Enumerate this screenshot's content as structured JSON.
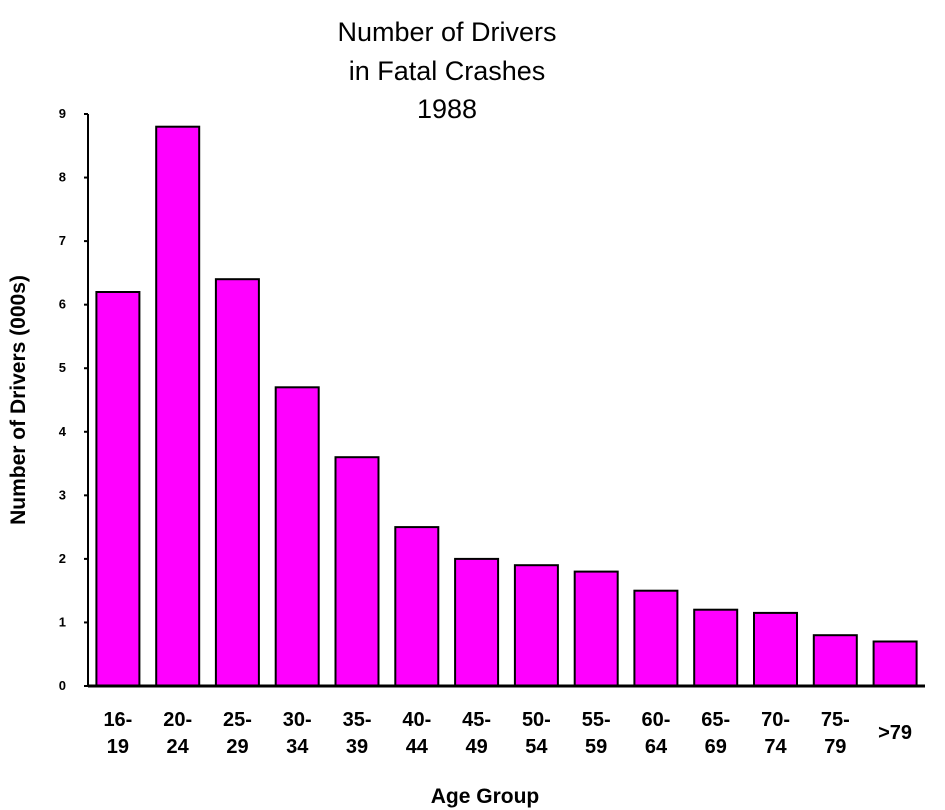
{
  "chart_data": {
    "type": "bar",
    "title_lines": [
      "Number of Drivers",
      "in Fatal Crashes",
      "1988"
    ],
    "xlabel": "Age Group",
    "ylabel": "Number of Drivers (000s)",
    "ylim": [
      0,
      9
    ],
    "yticks": [
      "0",
      "1",
      "2",
      "3",
      "4",
      "5",
      "6",
      "7",
      "8",
      "9"
    ],
    "categories": [
      [
        "16-",
        "19"
      ],
      [
        "20-",
        "24"
      ],
      [
        "25-",
        "29"
      ],
      [
        "30-",
        "34"
      ],
      [
        "35-",
        "39"
      ],
      [
        "40-",
        "44"
      ],
      [
        "45-",
        "49"
      ],
      [
        "50-",
        "54"
      ],
      [
        "55-",
        "59"
      ],
      [
        "60-",
        "64"
      ],
      [
        "65-",
        "69"
      ],
      [
        "70-",
        "74"
      ],
      [
        "75-",
        "79"
      ],
      [
        ">79"
      ]
    ],
    "values": [
      6.2,
      8.8,
      6.4,
      4.7,
      3.6,
      2.5,
      2.0,
      1.9,
      1.8,
      1.5,
      1.2,
      1.15,
      0.8,
      0.7
    ],
    "grid": false,
    "legend": "none",
    "bar_color": "#ff00ff"
  }
}
